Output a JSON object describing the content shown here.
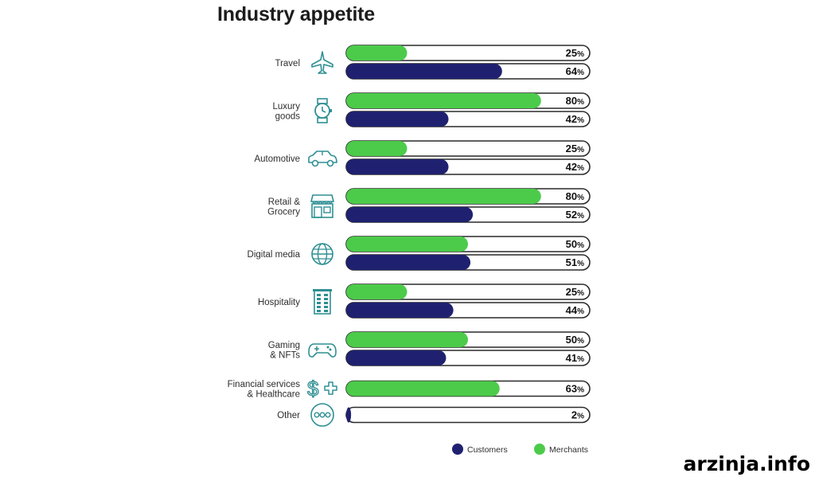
{
  "chart_data": {
    "type": "bar",
    "orientation": "horizontal",
    "title": "Industry appetite",
    "unit": "%",
    "xlim": [
      0,
      100
    ],
    "categories": [
      [
        "Travel"
      ],
      [
        "Luxury",
        "goods"
      ],
      [
        "Automotive"
      ],
      [
        "Retail &",
        "Grocery"
      ],
      [
        "Digital media"
      ],
      [
        "Hospitality"
      ],
      [
        "Gaming",
        "& NFTs"
      ],
      [
        "Financial services",
        "& Healthcare"
      ],
      [
        "Other"
      ]
    ],
    "icons": [
      "airplane-icon",
      "watch-icon",
      "car-icon",
      "store-icon",
      "globe-icon",
      "building-icon",
      "gamepad-icon",
      "dollar-plus-icon",
      "dots-icon"
    ],
    "series": [
      {
        "name": "Merchants",
        "color": "#4ccb4a",
        "values": [
          25,
          80,
          25,
          80,
          50,
          25,
          50,
          63,
          null
        ]
      },
      {
        "name": "Customers",
        "color": "#1f2170",
        "values": [
          64,
          42,
          42,
          52,
          51,
          44,
          41,
          null,
          2
        ]
      }
    ],
    "legend": {
      "position": "bottom-right",
      "order": [
        "Customers",
        "Merchants"
      ]
    }
  },
  "watermark": "arzinja.info",
  "colors": {
    "icon": "#2f8f93",
    "bar_border": "#2a2a2a"
  }
}
